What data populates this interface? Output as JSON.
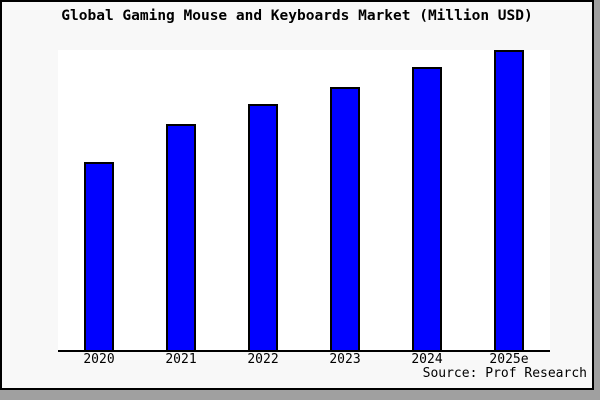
{
  "figure": {
    "title": "Global Gaming Mouse and Keyboards Market (Million USD)",
    "source_note": "Source: Prof Research"
  },
  "colors": {
    "bar_fill": "#0000ff",
    "bar_border": "#000000",
    "figure_background": "#f8f8f8",
    "plot_background": "#ffffff",
    "axis_line": "#000000",
    "figure_border": "#000000",
    "shadow": "#a0a0a0",
    "text": "#000000"
  },
  "chart_data": {
    "type": "bar",
    "title": "Global Gaming Mouse and Keyboards Market (Million USD)",
    "categories": [
      "2020",
      "2021",
      "2022",
      "2023",
      "2024",
      "2025e"
    ],
    "values": [
      62.7,
      75.3,
      82.0,
      87.7,
      94.3,
      100.0
    ],
    "values_note": "No y-axis scale shown in chart; values are bar heights as percent of the tallest (2025e) bar",
    "xlabel": "",
    "ylabel": "",
    "ylim": [
      0,
      100
    ],
    "grid": false,
    "legend": false,
    "y_axis_shown": false,
    "source_note": "Source: Prof Research"
  }
}
